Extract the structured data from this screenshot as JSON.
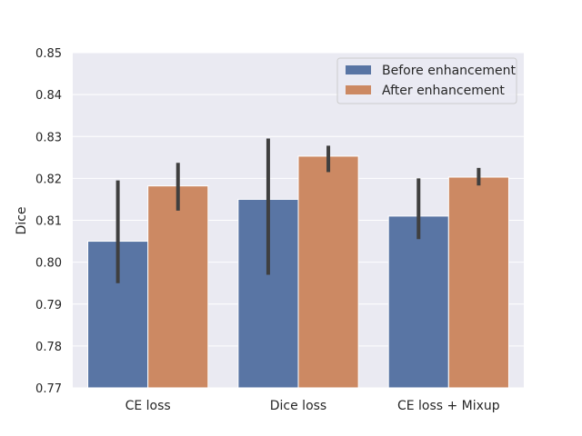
{
  "chart_data": {
    "type": "bar",
    "title": "",
    "xlabel": "",
    "ylabel": "Dice",
    "ylim": [
      0.77,
      0.85
    ],
    "yticks": [
      "0.77",
      "0.78",
      "0.79",
      "0.80",
      "0.81",
      "0.82",
      "0.83",
      "0.84",
      "0.85"
    ],
    "categories": [
      "CE loss",
      "Dice loss",
      "CE loss + Mixup"
    ],
    "series": [
      {
        "name": "Before enhancement",
        "color": "#5975a4",
        "values": [
          0.805,
          0.815,
          0.811
        ],
        "error_low": [
          0.795,
          0.797,
          0.8055
        ],
        "error_high": [
          0.8195,
          0.8295,
          0.82
        ]
      },
      {
        "name": "After enhancement",
        "color": "#cc8963",
        "values": [
          0.8182,
          0.8253,
          0.8203
        ],
        "error_low": [
          0.8123,
          0.8215,
          0.8183
        ],
        "error_high": [
          0.8237,
          0.8278,
          0.8225
        ]
      }
    ],
    "grid": true,
    "legend_position": "top-right"
  }
}
